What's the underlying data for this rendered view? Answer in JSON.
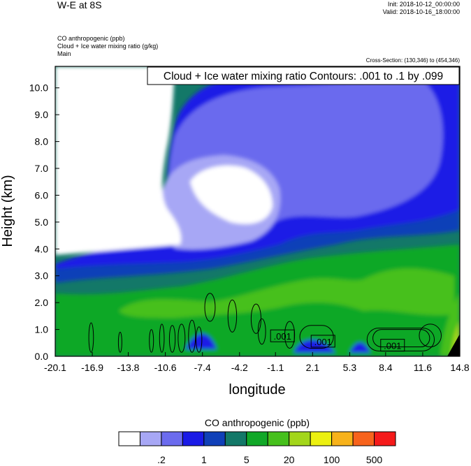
{
  "header": {
    "title": "W-E at 8S",
    "init": "Init: 2018-10-12_00:00:00",
    "valid": "Valid: 2018-10-16_18:00:00",
    "fields": [
      "CO anthropogenic   (ppb)",
      "Cloud + Ice water mixing ratio   (g/kg)",
      "Main"
    ],
    "cross_section": "Cross-Section: (130,346) to (454,346)"
  },
  "chart_data": {
    "type": "heatmap",
    "title": "Cloud + Ice water mixing ratio Contours: .001 to .1 by .099",
    "xlabel": "longitude",
    "ylabel": "Height (km)",
    "xlim": [
      -20.1,
      14.8
    ],
    "ylim": [
      0.0,
      10.8
    ],
    "x_ticks": [
      "-20.1",
      "-16.9",
      "-13.8",
      "-10.6",
      "-7.4",
      "-4.2",
      "-1.1",
      "2.1",
      "5.3",
      "8.4",
      "11.6",
      "14.8"
    ],
    "y_ticks": [
      "0.0",
      "1.0",
      "2.0",
      "3.0",
      "4.0",
      "5.0",
      "6.0",
      "7.0",
      "8.0",
      "9.0",
      "10.0"
    ],
    "contour_labels": [
      {
        "text": ".001",
        "x": -0.5,
        "y": 0.75
      },
      {
        "text": ".001",
        "x": 3.0,
        "y": 0.55
      },
      {
        "text": ".001",
        "x": 9.0,
        "y": 0.4
      }
    ],
    "colorbar": {
      "label": "CO anthropogenic  (ppb)",
      "colors": [
        "#ffffff",
        "#a7a7f5",
        "#6b6bee",
        "#1a1ae6",
        "#1040b8",
        "#137868",
        "#11a828",
        "#46c01c",
        "#a3d61a",
        "#ecf010",
        "#f7b21a",
        "#f7631c",
        "#f51a1a"
      ],
      "tick_labels": [
        ".2",
        "1",
        "5",
        "20",
        "100",
        "500"
      ]
    }
  }
}
